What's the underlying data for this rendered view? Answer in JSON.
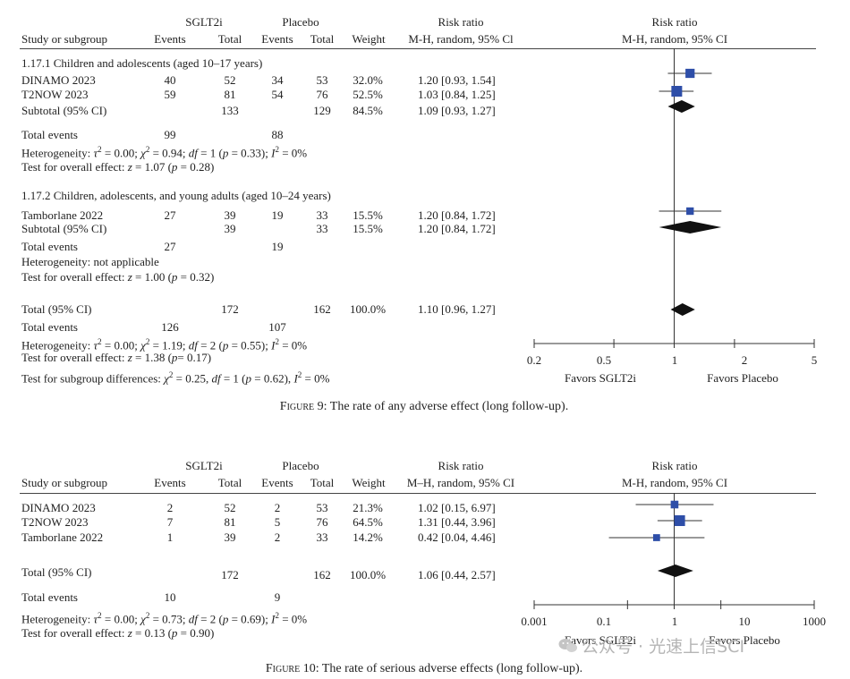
{
  "fig9": {
    "header": {
      "study": "Study or subgroup",
      "group1": "SGLT2i",
      "group2": "Placebo",
      "events": "Events",
      "total": "Total",
      "weight": "Weight",
      "rr": "Risk ratio",
      "rr_method_left": "M-H, random, 95% Cl",
      "rr_method_right": "M-H, random, 95% CI"
    },
    "subgroup1": {
      "title": "1.17.1 Children and adolescents (aged 10–17 years)",
      "rows": [
        {
          "study": "DINAMO 2023",
          "e1": "40",
          "t1": "52",
          "e2": "34",
          "t2": "53",
          "weight": "32.0%",
          "ci": "1.20 [0.93, 1.54]"
        },
        {
          "study": "T2NOW 2023",
          "e1": "59",
          "t1": "81",
          "e2": "54",
          "t2": "76",
          "weight": "52.5%",
          "ci": "1.03 [0.84, 1.25]"
        }
      ],
      "subtotal": {
        "label": "Subtotal (95% CI)",
        "t1": "133",
        "t2": "129",
        "weight": "84.5%",
        "ci": "1.09 [0.93, 1.27]"
      },
      "total_events": {
        "label": "Total events",
        "e1": "99",
        "e2": "88"
      },
      "heterogeneity": {
        "a": "Heterogeneity: ",
        "tau": "τ",
        "eq1": " = 0.00; ",
        "chi": "χ",
        "eq2": " = 0.94; ",
        "df": "df",
        "eq3": " = 1 (",
        "p": "p",
        "eq4": " = 0.33); ",
        "i": "I",
        "eq5": " = 0%"
      },
      "overall": {
        "a": "Test for overall effect: ",
        "z": "z",
        "b": " = 1.07 (",
        "p": "p",
        "c": " = 0.28)"
      }
    },
    "subgroup2": {
      "title": "1.17.2 Children, adolescents, and young adults (aged 10–24 years)",
      "rows": [
        {
          "study": "Tamborlane 2022",
          "e1": "27",
          "t1": "39",
          "e2": "19",
          "t2": "33",
          "weight": "15.5%",
          "ci": "1.20 [0.84, 1.72]"
        }
      ],
      "subtotal": {
        "label": "Subtotal (95% CI)",
        "t1": "39",
        "t2": "33",
        "weight": "15.5%",
        "ci": "1.20 [0.84, 1.72]"
      },
      "total_events": {
        "label": "Total events",
        "e1": "27",
        "e2": "19"
      },
      "heterogeneity": "Heterogeneity: not applicable",
      "overall": {
        "a": "Test for overall effect: ",
        "z": "z",
        "b": " = 1.00 (",
        "p": "p",
        "c": " = 0.32)"
      }
    },
    "total": {
      "label": "Total (95% CI)",
      "t1": "172",
      "t2": "162",
      "weight": "100.0%",
      "ci": "1.10 [0.96, 1.27]"
    },
    "total_events": {
      "label": "Total events",
      "e1": "126",
      "e2": "107"
    },
    "heterogeneity": {
      "a": "Heterogeneity: ",
      "tau": "τ",
      "eq1": " = 0.00; ",
      "chi": "χ",
      "eq2": " = 1.19; ",
      "df": "df",
      "eq3": " = 2 (",
      "p": "p",
      "eq4": " = 0.55); ",
      "i": "I",
      "eq5": " = 0%"
    },
    "overall": {
      "a": "Test for overall effect: ",
      "z": "z",
      "b": " = 1.38 (",
      "p": "p",
      "c": "= 0.17)"
    },
    "subgroup_diff": {
      "a": "Test for subgroup differences: ",
      "chi": "χ",
      "eq1": " = 0.25, ",
      "df": "df",
      "eq2": " = 1 (",
      "p": "p",
      "eq3": " = 0.62), ",
      "i": "I",
      "eq4": " = 0%"
    },
    "axis": {
      "ticks": [
        "0.2",
        "0.5",
        "1",
        "2",
        "5"
      ],
      "favors_left": "Favors SGLT2i",
      "favors_right": "Favors Placebo"
    },
    "caption": {
      "prefix": "Figure 9",
      "text": ": The rate of any adverse effect (long follow-up)."
    }
  },
  "fig10": {
    "header": {
      "study": "Study or subgroup",
      "group1": "SGLT2i",
      "group2": "Placebo",
      "events": "Events",
      "total": "Total",
      "weight": "Weight",
      "rr": "Risk ratio",
      "rr_method_left": "M–H, random, 95% CI",
      "rr_method_right": "M-H, random, 95% CI"
    },
    "rows": [
      {
        "study": "DINAMO 2023",
        "e1": "2",
        "t1": "52",
        "e2": "2",
        "t2": "53",
        "weight": "21.3%",
        "ci": "1.02 [0.15, 6.97]"
      },
      {
        "study": "T2NOW 2023",
        "e1": "7",
        "t1": "81",
        "e2": "5",
        "t2": "76",
        "weight": "64.5%",
        "ci": "1.31 [0.44, 3.96]"
      },
      {
        "study": "Tamborlane 2022",
        "e1": "1",
        "t1": "39",
        "e2": "2",
        "t2": "33",
        "weight": "14.2%",
        "ci": "0.42 [0.04, 4.46]"
      }
    ],
    "total": {
      "label": "Total (95% CI)",
      "t1": "172",
      "t2": "162",
      "weight": "100.0%",
      "ci": "1.06 [0.44, 2.57]"
    },
    "total_events": {
      "label": "Total events",
      "e1": "10",
      "e2": "9"
    },
    "heterogeneity": {
      "a": "Heterogeneity: ",
      "tau": "τ",
      "eq1": " = 0.00; ",
      "chi": "χ",
      "eq2": " = 0.73; ",
      "df": "df",
      "eq3": " = 2 (",
      "p": "p",
      "eq4": " = 0.69); ",
      "i": "I",
      "eq5": " =  0%"
    },
    "overall": {
      "a": "Test for overall effect: ",
      "z": "z",
      "b": " = 0.13 (",
      "p": "p",
      "c": " = 0.90)"
    },
    "axis": {
      "ticks": [
        "0.001",
        "0.1",
        "1",
        "10",
        "1000"
      ],
      "favors_left": "Favors SGLT2i",
      "favors_right": "Favors Placebo"
    },
    "caption": {
      "prefix": "Figure 10",
      "text": ": The rate of serious adverse effects (long follow-up)."
    }
  },
  "watermark": "公众号 · 光速上信SCI",
  "chart_data": [
    {
      "type": "forest",
      "scale": "log",
      "xlim": [
        0.2,
        5
      ],
      "null_value": 1,
      "colors": {
        "marker": "#2e4ea8",
        "diamond": "#111111"
      },
      "studies": [
        {
          "name": "DINAMO 2023",
          "rr": 1.2,
          "lower": 0.93,
          "upper": 1.54,
          "weight": 32.0
        },
        {
          "name": "T2NOW 2023",
          "rr": 1.03,
          "lower": 0.84,
          "upper": 1.25,
          "weight": 52.5
        },
        {
          "name": "Tamborlane 2022",
          "rr": 1.2,
          "lower": 0.84,
          "upper": 1.72,
          "weight": 15.5
        }
      ],
      "summaries": [
        {
          "name": "Subtotal (95% CI)",
          "rr": 1.09,
          "lower": 0.93,
          "upper": 1.27
        },
        {
          "name": "Subtotal (95% CI)",
          "rr": 1.2,
          "lower": 0.84,
          "upper": 1.72
        },
        {
          "name": "Total (95% CI)",
          "rr": 1.1,
          "lower": 0.96,
          "upper": 1.27
        }
      ]
    },
    {
      "type": "forest",
      "scale": "log",
      "xlim": [
        0.001,
        1000
      ],
      "null_value": 1,
      "colors": {
        "marker": "#2e4ea8",
        "diamond": "#111111"
      },
      "studies": [
        {
          "name": "DINAMO 2023",
          "rr": 1.02,
          "lower": 0.15,
          "upper": 6.97,
          "weight": 21.3
        },
        {
          "name": "T2NOW 2023",
          "rr": 1.31,
          "lower": 0.44,
          "upper": 3.96,
          "weight": 64.5
        },
        {
          "name": "Tamborlane 2022",
          "rr": 0.42,
          "lower": 0.04,
          "upper": 4.46,
          "weight": 14.2
        }
      ],
      "summaries": [
        {
          "name": "Total (95% CI)",
          "rr": 1.06,
          "lower": 0.44,
          "upper": 2.57
        }
      ]
    }
  ]
}
